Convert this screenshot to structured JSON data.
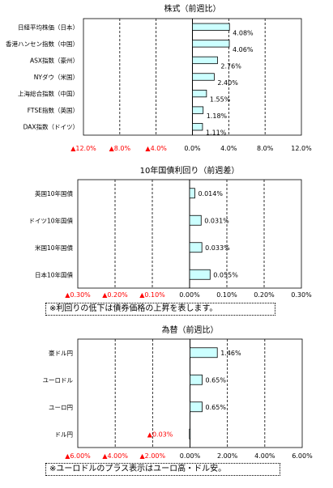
{
  "chart_data": [
    {
      "type": "bar",
      "orientation": "horizontal",
      "title": "株式（前週比）",
      "categories": [
        "日経平均株価（日本）",
        "香港ハンセン指数（中国）",
        "ASX指数（豪州）",
        "NYダウ（米国）",
        "上海総合指数（中国）",
        "FTSE指数（英国）",
        "DAX指数（ドイツ）"
      ],
      "values": [
        4.08,
        4.06,
        2.76,
        2.4,
        1.55,
        1.18,
        1.11
      ],
      "value_labels": [
        "4.08%",
        "4.06%",
        "2.76%",
        "2.40%",
        "1.55%",
        "1.18%",
        "1.11%"
      ],
      "xlim": [
        -12,
        12
      ],
      "ticks": [
        -12,
        -8,
        -4,
        0,
        4,
        8,
        12
      ],
      "tick_labels": [
        "▲12.0%",
        "▲8.0%",
        "▲4.0%",
        "0.0%",
        "4.0%",
        "8.0%",
        "12.0%"
      ],
      "grid": "vertical dashed",
      "bar_color": "#ccffff",
      "negative_label_color": "#ff0000"
    },
    {
      "type": "bar",
      "orientation": "horizontal",
      "title": "10年国債利回り（前週差）",
      "categories": [
        "英国10年国債",
        "ドイツ10年国債",
        "米国10年国債",
        "日本10年国債"
      ],
      "values": [
        0.014,
        0.031,
        0.033,
        0.055
      ],
      "value_labels": [
        "0.014%",
        "0.031%",
        "0.033%",
        "0.055%"
      ],
      "xlim": [
        -0.3,
        0.3
      ],
      "ticks": [
        -0.3,
        -0.2,
        -0.1,
        0,
        0.1,
        0.2,
        0.3
      ],
      "tick_labels": [
        "▲0.30%",
        "▲0.20%",
        "▲0.10%",
        "0.00%",
        "0.10%",
        "0.20%",
        "0.30%"
      ],
      "grid": "vertical dashed",
      "bar_color": "#ccffff",
      "negative_label_color": "#ff0000"
    },
    {
      "type": "bar",
      "orientation": "horizontal",
      "title": "為替（前週比）",
      "categories": [
        "豪ドル円",
        "ユーロドル",
        "ユーロ円",
        "ドル円"
      ],
      "values": [
        1.46,
        0.65,
        0.65,
        -0.03
      ],
      "value_labels": [
        "1.46%",
        "0.65%",
        "0.65%",
        "▲0.03%"
      ],
      "xlim": [
        -6,
        6
      ],
      "ticks": [
        -6,
        -4,
        -2,
        0,
        2,
        4,
        6
      ],
      "tick_labels": [
        "▲6.00%",
        "▲4.00%",
        "▲2.00%",
        "0.00%",
        "2.00%",
        "4.00%",
        "6.00%"
      ],
      "grid": "vertical dashed",
      "bar_color": "#ccffff",
      "negative_label_color": "#ff0000"
    }
  ],
  "notes": {
    "bond_note": "※利回りの低下は債券価格の上昇を表します。",
    "fx_note": "※ユーロドルのプラス表示はユーロ高・ドル安。"
  }
}
